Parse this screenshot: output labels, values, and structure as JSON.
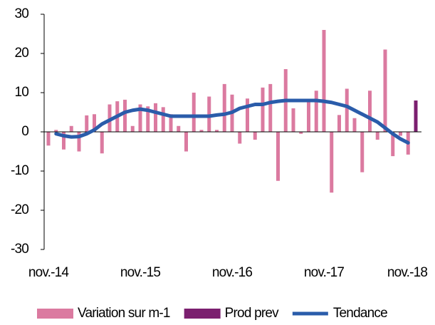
{
  "chart_data": {
    "type": "bar",
    "categories": [
      "nov.-14",
      null,
      null,
      null,
      null,
      null,
      null,
      null,
      null,
      null,
      null,
      null,
      "nov.-15",
      null,
      null,
      null,
      null,
      null,
      null,
      null,
      null,
      null,
      null,
      null,
      "nov.-16",
      null,
      null,
      null,
      null,
      null,
      null,
      null,
      null,
      null,
      null,
      null,
      "nov.-17",
      null,
      null,
      null,
      null,
      null,
      null,
      null,
      null,
      null,
      null,
      null,
      "nov.-18"
    ],
    "series": [
      {
        "name": "Variation sur m-1",
        "type": "bar",
        "color": "#db7aa0",
        "values": [
          -3.5,
          0.5,
          -4.5,
          1.5,
          -5,
          4.2,
          4.5,
          -5.5,
          7,
          7.8,
          8.2,
          1.5,
          7,
          6.5,
          7.3,
          6.3,
          4.5,
          1.5,
          -5,
          10,
          0.5,
          9,
          0.5,
          12.2,
          9.5,
          -3,
          8.5,
          -2,
          11.3,
          12.2,
          -12.5,
          16,
          6,
          -0.5,
          8.2,
          10.5,
          26,
          -15.5,
          4.3,
          11,
          3.5,
          -10.3,
          10.5,
          -2,
          21,
          -6.2,
          -1,
          -5.8,
          null
        ]
      },
      {
        "name": "Prod prev",
        "type": "bar",
        "color": "#7b1f6f",
        "values": [
          null,
          null,
          null,
          null,
          null,
          null,
          null,
          null,
          null,
          null,
          null,
          null,
          null,
          null,
          null,
          null,
          null,
          null,
          null,
          null,
          null,
          null,
          null,
          null,
          null,
          null,
          null,
          null,
          null,
          null,
          null,
          null,
          null,
          null,
          null,
          null,
          null,
          null,
          null,
          null,
          null,
          null,
          null,
          null,
          null,
          null,
          null,
          null,
          8
        ]
      },
      {
        "name": "Tendance",
        "type": "line",
        "color": "#2a5caa",
        "values": [
          null,
          -0.5,
          -1,
          -1.3,
          -1.2,
          -0.5,
          0.5,
          2,
          3,
          4,
          5,
          5.5,
          5.8,
          5.5,
          5,
          4.5,
          4,
          4,
          4,
          4,
          4,
          4,
          4.3,
          4.5,
          5,
          6,
          6.5,
          7,
          7,
          7.5,
          7.8,
          8,
          8,
          8,
          8,
          8,
          7.8,
          7.5,
          7,
          6.5,
          5.5,
          4.5,
          3.5,
          2.5,
          1,
          -0.5,
          -1.8,
          -2.8,
          null
        ]
      }
    ],
    "ylim": [
      -30,
      30
    ],
    "yticks": [
      -30,
      -20,
      -10,
      0,
      10,
      20,
      30
    ],
    "grid": false,
    "legend": "bottom"
  }
}
